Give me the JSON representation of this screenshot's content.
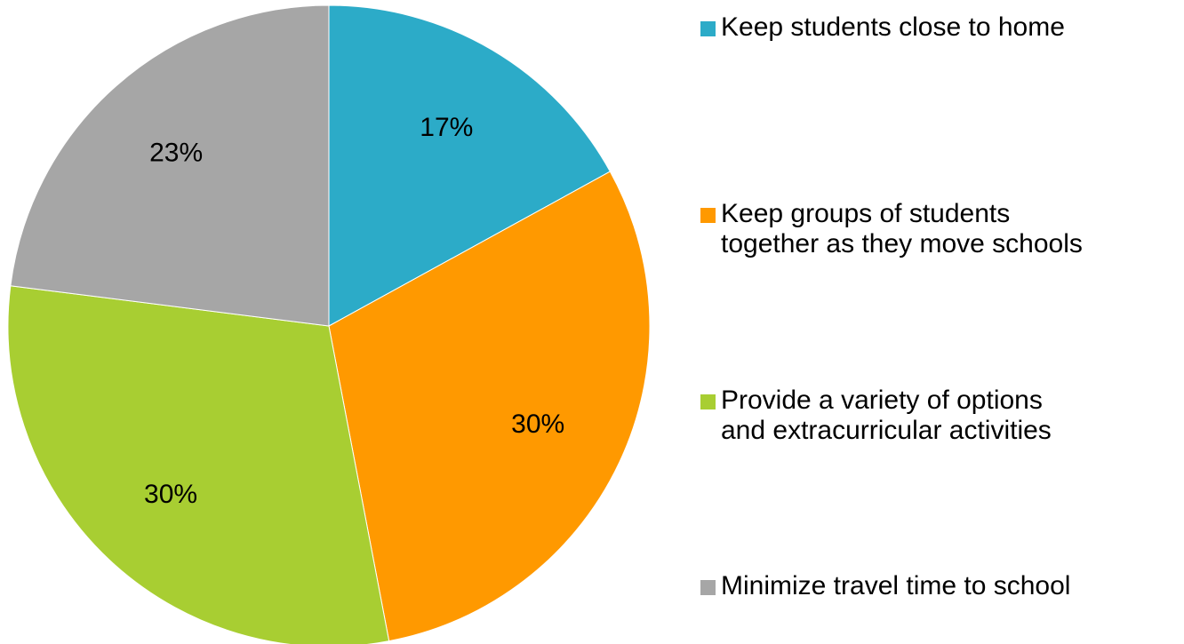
{
  "chart_data": {
    "type": "pie",
    "title": "",
    "categories": [
      "Keep students close to home",
      "Keep groups of students\ntogether as they move schools",
      "Provide a variety of options\nand extracurricular activities",
      "Minimize travel time to school"
    ],
    "values": [
      17,
      30,
      30,
      23
    ],
    "value_labels": [
      "17%",
      "30%",
      "30%",
      "23%"
    ],
    "colors": [
      "#2CABC8",
      "#FF9900",
      "#A8CE32",
      "#A6A6A6"
    ],
    "legend_placement": "right",
    "start_angle": "top",
    "direction": "clockwise"
  }
}
